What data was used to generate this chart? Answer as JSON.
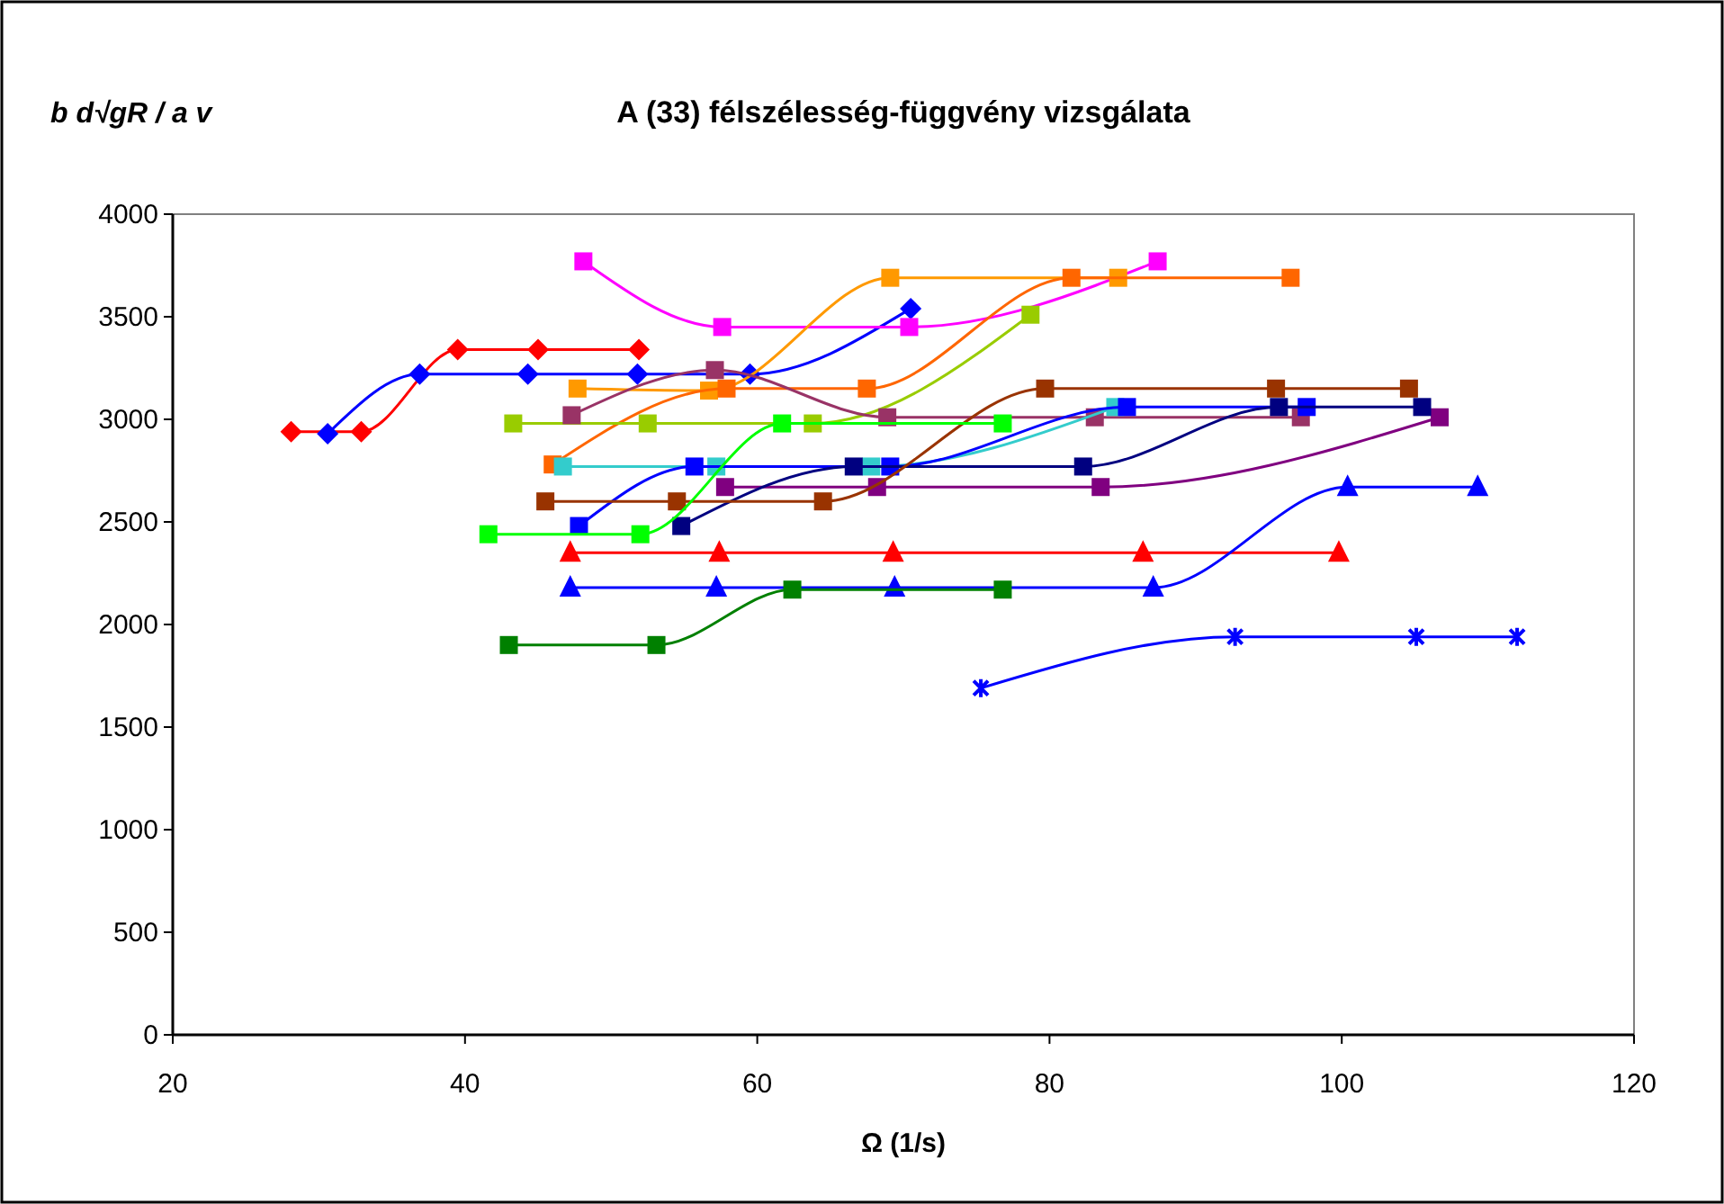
{
  "chart_data": {
    "type": "line",
    "title": "A (33) félszélesség-függvény vizsgálata",
    "xlabel": "Ω (1/s)",
    "ylabel": "b d√gR / a v",
    "xlim": [
      20,
      120
    ],
    "xticks": [
      20,
      40,
      60,
      80,
      100,
      120
    ],
    "ylim": [
      0,
      4000
    ],
    "yticks": [
      0,
      500,
      1000,
      1500,
      2000,
      2500,
      3000,
      3500,
      4000
    ],
    "grid": false,
    "line_style": "solid",
    "series": [
      {
        "color": "#ff0000",
        "marker": "diamond",
        "x": [
          28.1,
          32.9,
          39.5,
          45.0,
          51.9
        ],
        "values": [
          2940,
          2940,
          3340,
          3340,
          3340
        ]
      },
      {
        "color": "#0000ff",
        "marker": "diamond",
        "x": [
          30.6,
          36.9,
          44.3,
          51.8,
          59.5,
          70.5
        ],
        "values": [
          2930,
          3220,
          3220,
          3220,
          3220,
          3540
        ]
      },
      {
        "color": "#ff00ff",
        "marker": "square",
        "x": [
          48.1,
          57.6,
          70.4,
          87.4
        ],
        "values": [
          3770,
          3450,
          3450,
          3770
        ]
      },
      {
        "color": "#ff9900",
        "marker": "square",
        "x": [
          47.7,
          56.7,
          69.1,
          84.7
        ],
        "values": [
          3150,
          3140,
          3690,
          3690
        ]
      },
      {
        "color": "#ff6600",
        "marker": "square",
        "x": [
          46.0,
          57.9,
          67.5,
          81.5,
          96.5
        ],
        "values": [
          2780,
          3150,
          3150,
          3690,
          3690
        ]
      },
      {
        "color": "#99cc00",
        "marker": "square",
        "x": [
          43.3,
          52.5,
          63.8,
          78.7
        ],
        "values": [
          2980,
          2980,
          2980,
          3510
        ]
      },
      {
        "color": "#993366",
        "marker": "square",
        "x": [
          47.3,
          57.1,
          68.9,
          83.1,
          97.2
        ],
        "values": [
          3020,
          3240,
          3010,
          3010,
          3010
        ]
      },
      {
        "color": "#800080",
        "marker": "square",
        "x": [
          57.8,
          68.2,
          83.5,
          106.7
        ],
        "values": [
          2670,
          2670,
          2670,
          3010
        ]
      },
      {
        "color": "#33cccc",
        "marker": "square",
        "x": [
          46.7,
          57.2,
          67.8,
          84.5
        ],
        "values": [
          2770,
          2770,
          2770,
          3060
        ]
      },
      {
        "color": "#0000ff",
        "marker": "square",
        "x": [
          47.8,
          55.7,
          69.1,
          85.3,
          97.6
        ],
        "values": [
          2480,
          2770,
          2770,
          3060,
          3060
        ]
      },
      {
        "color": "#000080",
        "marker": "square",
        "x": [
          54.8,
          66.6,
          82.3,
          95.7,
          105.5
        ],
        "values": [
          2480,
          2770,
          2770,
          3060,
          3060
        ]
      },
      {
        "color": "#993300",
        "marker": "square",
        "x": [
          45.5,
          54.5,
          64.5,
          79.7,
          95.5,
          104.6
        ],
        "values": [
          2600,
          2600,
          2600,
          3150,
          3150,
          3150
        ]
      },
      {
        "color": "#00ff00",
        "marker": "square",
        "x": [
          41.6,
          52.0,
          61.7,
          76.8
        ],
        "values": [
          2440,
          2440,
          2980,
          2980
        ]
      },
      {
        "color": "#ff0000",
        "marker": "triangle",
        "x": [
          47.2,
          57.4,
          69.3,
          86.4,
          99.8
        ],
        "values": [
          2350,
          2350,
          2350,
          2350,
          2350
        ]
      },
      {
        "color": "#0000ff",
        "marker": "triangle",
        "x": [
          47.2,
          57.2,
          69.4,
          87.1,
          100.4,
          109.3
        ],
        "values": [
          2180,
          2180,
          2180,
          2180,
          2670,
          2670
        ]
      },
      {
        "color": "#008000",
        "marker": "square",
        "x": [
          43.0,
          53.1,
          62.4,
          76.8
        ],
        "values": [
          1900,
          1900,
          2170,
          2170
        ]
      },
      {
        "color": "#0000ff",
        "marker": "cross",
        "x": [
          75.3,
          92.7,
          105.1,
          112.0
        ],
        "values": [
          1690,
          1940,
          1940,
          1940
        ]
      }
    ]
  }
}
